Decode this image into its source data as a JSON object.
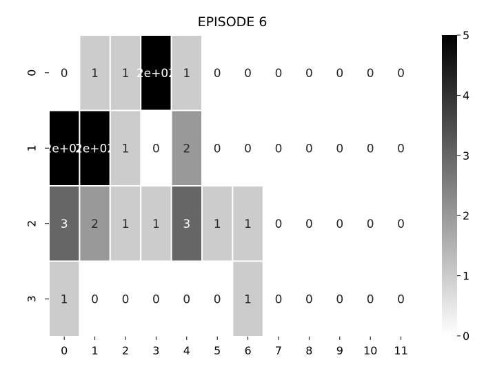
{
  "chart_data": {
    "type": "heatmap",
    "title": "EPISODE 6",
    "xlabel": "",
    "ylabel": "",
    "x_categories": [
      "0",
      "1",
      "2",
      "3",
      "4",
      "5",
      "6",
      "7",
      "8",
      "9",
      "10",
      "11"
    ],
    "y_categories": [
      "0",
      "1",
      "2",
      "3"
    ],
    "values": [
      [
        0,
        1,
        1,
        200,
        1,
        0,
        0,
        0,
        0,
        0,
        0,
        0
      ],
      [
        200,
        200,
        1,
        0,
        2,
        0,
        0,
        0,
        0,
        0,
        0,
        0
      ],
      [
        3,
        2,
        1,
        1,
        3,
        1,
        1,
        0,
        0,
        0,
        0,
        0
      ],
      [
        1,
        0,
        0,
        0,
        0,
        0,
        1,
        0,
        0,
        0,
        0,
        0
      ]
    ],
    "cell_labels": [
      [
        "0",
        "1",
        "1",
        "2e+02",
        "1",
        "0",
        "0",
        "0",
        "0",
        "0",
        "0",
        "0"
      ],
      [
        "2e+02",
        "2e+02",
        "1",
        "0",
        "2",
        "0",
        "0",
        "0",
        "0",
        "0",
        "0",
        "0"
      ],
      [
        "3",
        "2",
        "1",
        "1",
        "3",
        "1",
        "1",
        "0",
        "0",
        "0",
        "0",
        "0"
      ],
      [
        "1",
        "0",
        "0",
        "0",
        "0",
        "0",
        "1",
        "0",
        "0",
        "0",
        "0",
        "0"
      ]
    ],
    "color_range": [
      0,
      5
    ],
    "colormap": "Greys",
    "colorbar_ticks": [
      "0",
      "1",
      "2",
      "3",
      "4",
      "5"
    ],
    "cell_border_color": "#ffffff",
    "grid": false,
    "legend": "colorbar-right"
  }
}
